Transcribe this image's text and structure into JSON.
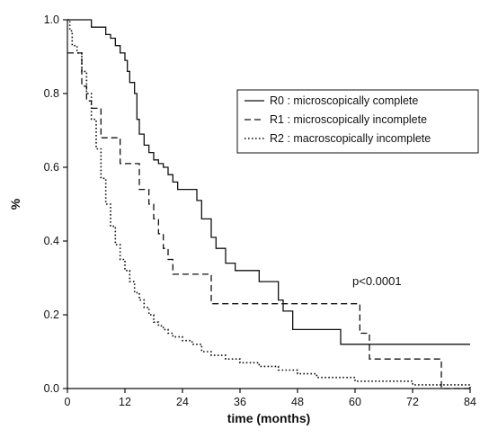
{
  "chart_data": {
    "type": "line",
    "title": "",
    "xlabel": "time (months)",
    "ylabel": "%",
    "xlim": [
      0,
      84
    ],
    "ylim": [
      0,
      1.0
    ],
    "xticks": [
      0,
      12,
      24,
      36,
      48,
      60,
      72,
      84
    ],
    "yticks": [
      0.0,
      0.2,
      0.4,
      0.6,
      0.8,
      1.0
    ],
    "xtick_labels": [
      "0",
      "12",
      "24",
      "36",
      "48",
      "60",
      "72",
      "84"
    ],
    "ytick_labels": [
      "0.0",
      "0.2",
      "0.4",
      "0.6",
      "0.8",
      "1.0"
    ],
    "grid": false,
    "legend_position": "top-right",
    "annotation": "p<0.0001",
    "series": [
      {
        "name": "R0 : microscopically complete",
        "style": "solid",
        "color": "#111111",
        "x": [
          0,
          5,
          8,
          9,
          10,
          11,
          12,
          12.5,
          13,
          14,
          14.5,
          15,
          16,
          17,
          18,
          19,
          20,
          21,
          22,
          23,
          25,
          27,
          28,
          30,
          31,
          33,
          35,
          37,
          40,
          44,
          45,
          47,
          54,
          57,
          84
        ],
        "y": [
          1.0,
          0.98,
          0.96,
          0.95,
          0.93,
          0.91,
          0.89,
          0.86,
          0.83,
          0.8,
          0.73,
          0.69,
          0.66,
          0.64,
          0.62,
          0.61,
          0.6,
          0.58,
          0.56,
          0.54,
          0.54,
          0.51,
          0.46,
          0.41,
          0.38,
          0.34,
          0.32,
          0.32,
          0.29,
          0.24,
          0.21,
          0.16,
          0.16,
          0.12,
          0.12
        ]
      },
      {
        "name": "R1 : microscopically incomplete",
        "style": "dashed",
        "color": "#111111",
        "x": [
          0,
          1,
          3,
          4,
          5,
          7,
          11,
          15,
          17,
          18,
          19,
          20,
          21,
          22,
          24,
          30,
          56,
          61,
          63,
          72,
          78,
          84
        ],
        "y": [
          0.91,
          0.91,
          0.82,
          0.78,
          0.76,
          0.68,
          0.61,
          0.54,
          0.5,
          0.46,
          0.42,
          0.38,
          0.35,
          0.31,
          0.31,
          0.23,
          0.23,
          0.15,
          0.08,
          0.08,
          0.0,
          0.0
        ]
      },
      {
        "name": "R2 : macroscopically incomplete",
        "style": "dotted",
        "color": "#111111",
        "x": [
          0,
          0.5,
          1,
          2,
          3,
          4,
          5,
          6,
          7,
          8,
          9,
          10,
          11,
          12,
          13,
          14,
          15,
          16,
          17,
          18,
          19,
          20,
          21,
          22,
          24,
          26,
          28,
          30,
          33,
          36,
          40,
          44,
          48,
          52,
          60,
          72,
          82,
          84
        ],
        "y": [
          1.0,
          0.97,
          0.93,
          0.91,
          0.86,
          0.8,
          0.73,
          0.65,
          0.57,
          0.5,
          0.44,
          0.39,
          0.35,
          0.32,
          0.29,
          0.26,
          0.24,
          0.22,
          0.2,
          0.18,
          0.17,
          0.16,
          0.15,
          0.14,
          0.13,
          0.12,
          0.1,
          0.09,
          0.08,
          0.07,
          0.06,
          0.05,
          0.04,
          0.03,
          0.02,
          0.01,
          0.01,
          0.0
        ]
      }
    ]
  }
}
